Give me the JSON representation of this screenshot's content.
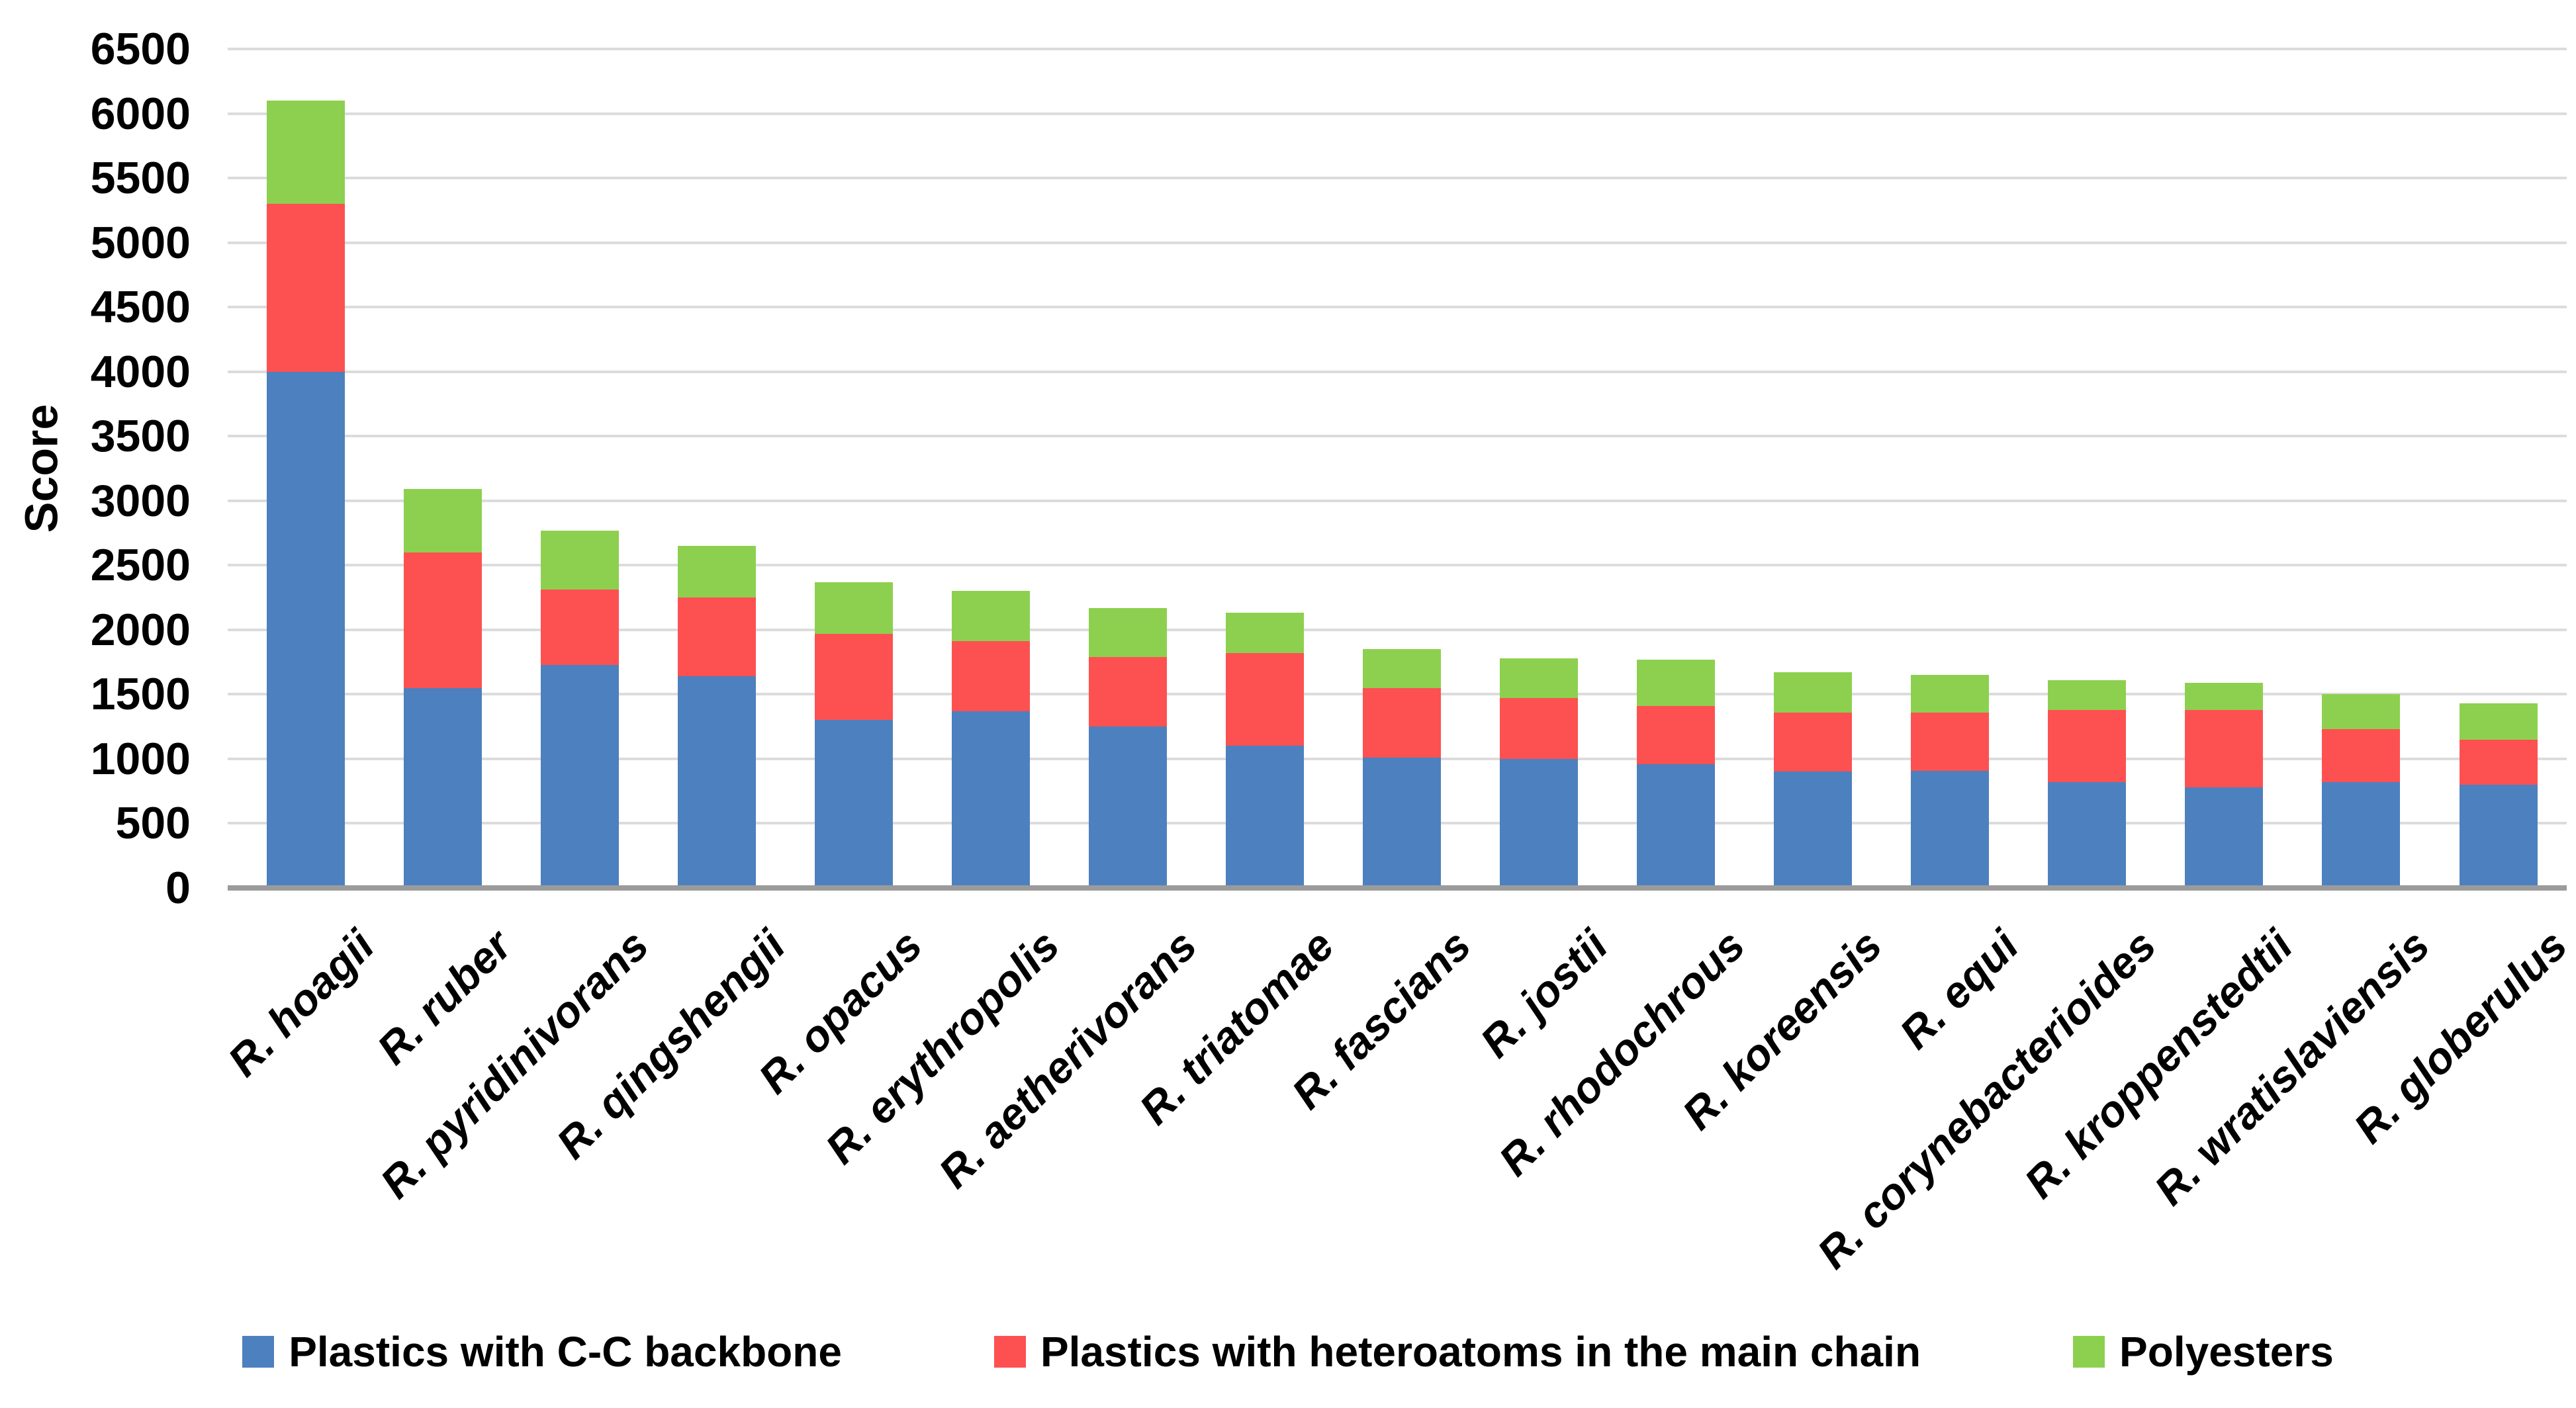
{
  "chart_data": {
    "type": "bar",
    "stacked": true,
    "title": "",
    "xlabel": "",
    "ylabel": "Score",
    "ylim": [
      0,
      6500
    ],
    "ytick_step": 500,
    "yticks": [
      0,
      500,
      1000,
      1500,
      2000,
      2500,
      3000,
      3500,
      4000,
      4500,
      5000,
      5500,
      6000,
      6500
    ],
    "grid": true,
    "legend_position": "bottom-center",
    "categories": [
      "R. hoagii",
      "R. ruber",
      "R. pyridinivorans",
      "R. qingshengii",
      "R. opacus",
      "R. erythropolis",
      "R. aetherivorans",
      "R. triatomae",
      "R. fascians",
      "R. jostii",
      "R. rhodochrous",
      "R. koreensis",
      "R. equi",
      "R. corynebacterioides",
      "R. kroppenstedtii",
      "R. wratislaviensis",
      "R. globerulus"
    ],
    "series": [
      {
        "name": "Plastics with C-C backbone",
        "color": "#4D80BE",
        "values": [
          4000,
          1550,
          1730,
          1640,
          1300,
          1370,
          1250,
          1100,
          1010,
          1000,
          960,
          900,
          910,
          820,
          780,
          820,
          800
        ]
      },
      {
        "name": "Plastics with heteroatoms in the main chain",
        "color": "#FD5151",
        "values": [
          1300,
          1050,
          580,
          610,
          670,
          540,
          540,
          720,
          540,
          470,
          450,
          460,
          450,
          560,
          600,
          410,
          350
        ]
      },
      {
        "name": "Polyesters",
        "color": "#8DD04F",
        "values": [
          800,
          490,
          460,
          400,
          400,
          390,
          380,
          310,
          300,
          310,
          360,
          310,
          290,
          230,
          210,
          270,
          280
        ]
      }
    ],
    "totals": [
      6100,
      3090,
      2770,
      2650,
      2370,
      2300,
      2170,
      2130,
      1850,
      1780,
      1770,
      1670,
      1650,
      1610,
      1590,
      1500,
      1430
    ]
  },
  "colors": {
    "background": "#FFFFFF",
    "gridline": "#DCDCDC",
    "axis_line": "#9B9B9B",
    "text": "#000000"
  }
}
